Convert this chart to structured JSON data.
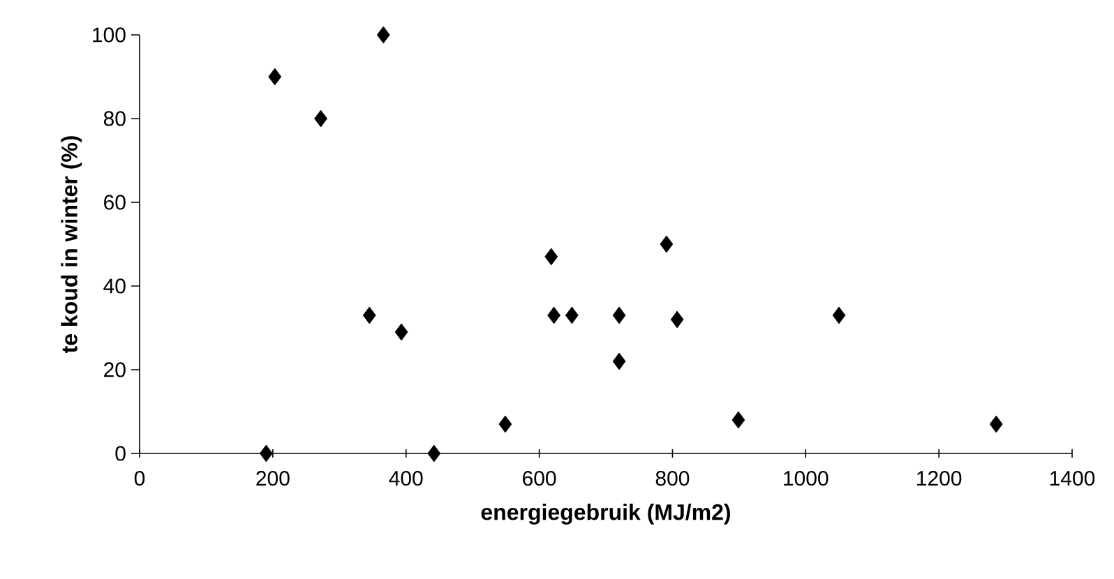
{
  "chart_data": {
    "type": "scatter",
    "xlabel": "energiegebruik (MJ/m2)",
    "ylabel": "te koud in winter (%)",
    "x": [
      203,
      272,
      366,
      345,
      393,
      549,
      618,
      622,
      649,
      720,
      720,
      190,
      442,
      791,
      807,
      899,
      1050,
      1286
    ],
    "values": [
      90,
      80,
      100,
      33,
      29,
      7,
      47,
      33,
      33,
      33,
      22,
      0,
      0,
      50,
      32,
      8,
      33,
      7
    ],
    "color": "#000000",
    "marker": "diamond",
    "grid": false,
    "xlim": [
      0,
      1400
    ],
    "xticks": [
      0,
      200,
      400,
      600,
      800,
      1000,
      1200,
      1400
    ],
    "ylim": [
      0,
      100
    ],
    "yticks": [
      0,
      20,
      40,
      60,
      80,
      100
    ]
  }
}
